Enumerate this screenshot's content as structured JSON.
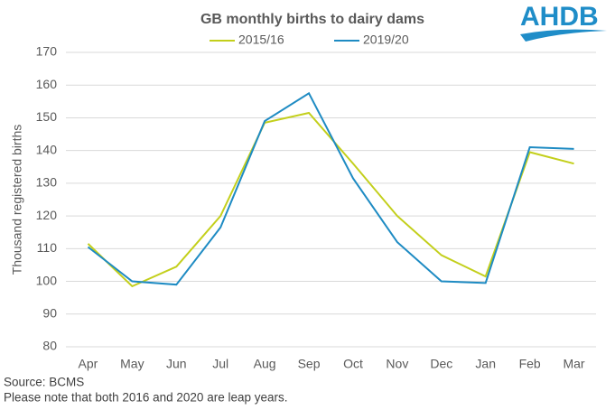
{
  "chart_data": {
    "type": "line",
    "title": "GB monthly births to dairy dams",
    "y_label": "Thousand  registered births",
    "logo": "AHDB",
    "source": "Source: BCMS",
    "note": "Please note that both 2016 and 2020 are leap years.",
    "categories": [
      "Apr",
      "May",
      "Jun",
      "Jul",
      "Aug",
      "Sep",
      "Oct",
      "Nov",
      "Dec",
      "Jan",
      "Feb",
      "Mar"
    ],
    "series": [
      {
        "name": "2015/16",
        "color": "#c3cf1b",
        "values": [
          111.5,
          98.5,
          104.5,
          120,
          148.5,
          151.5,
          136,
          120,
          108,
          101.5,
          139.5,
          136
        ]
      },
      {
        "name": "2019/20",
        "color": "#1e8bc3",
        "values": [
          110.5,
          100,
          99,
          116.5,
          149,
          157.5,
          131.5,
          112,
          100,
          99.5,
          141,
          140.5
        ]
      }
    ],
    "ylim": [
      80,
      170
    ],
    "yticks": [
      80,
      90,
      100,
      110,
      120,
      130,
      140,
      150,
      160,
      170
    ],
    "grid": true,
    "legend": "top"
  }
}
